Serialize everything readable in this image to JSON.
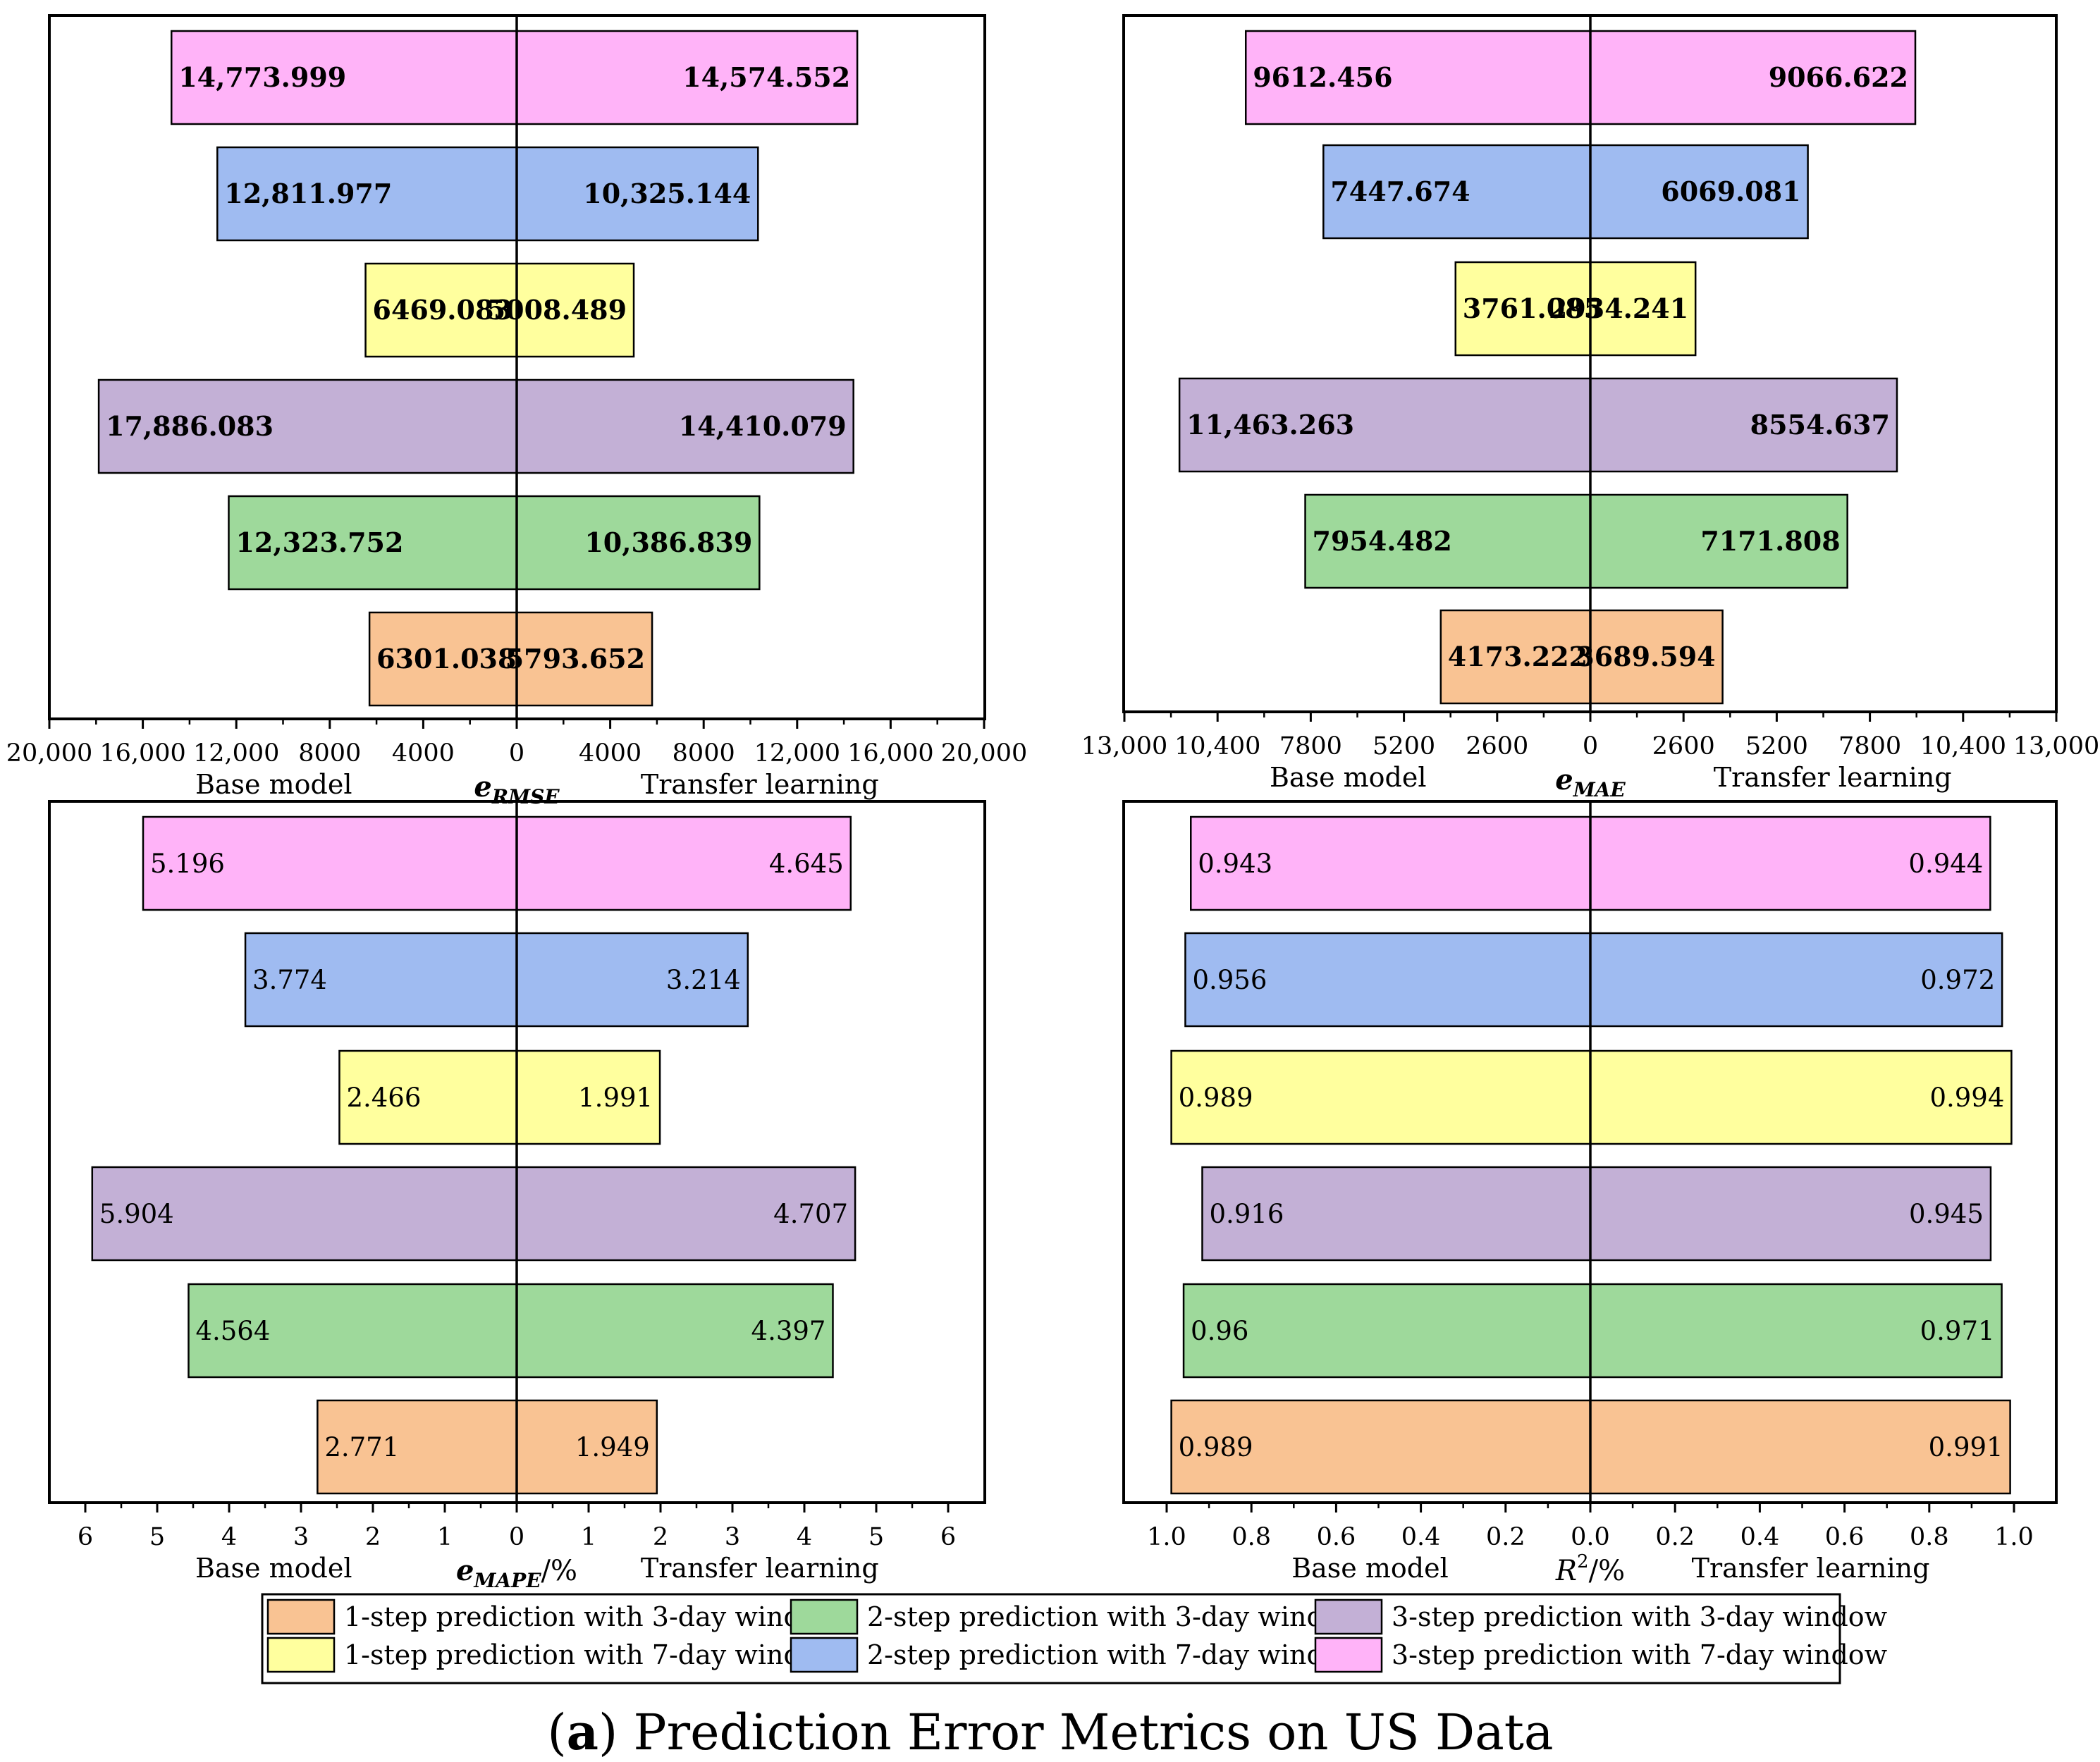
{
  "figure": {
    "caption_panel": "(a)",
    "caption_text": " Prediction Error Metrics on US Data"
  },
  "side_labels": {
    "left": "Base model",
    "right": "Transfer learning"
  },
  "legend": {
    "items": [
      {
        "label": "1-step prediction with 3-day window",
        "color": "#f9c393"
      },
      {
        "label": "2-step prediction with 3-day window",
        "color": "#9ed99b"
      },
      {
        "label": "3-step prediction with 3-day window",
        "color": "#c3b0d6"
      },
      {
        "label": "1-step prediction with 7-day window",
        "color": "#ffff9e"
      },
      {
        "label": "2-step prediction with 7-day window",
        "color": "#9fbbf1"
      },
      {
        "label": "3-step prediction with 7-day window",
        "color": "#ffb3f8"
      }
    ]
  },
  "chart_data": [
    {
      "type": "bar",
      "orientation": "horizontal-butterfly",
      "xlabel_main": "e",
      "xlabel_sub": "RMSE",
      "xlabel_suffix": "",
      "xlim": [
        -20000,
        20000
      ],
      "ticks": [
        -20000,
        -16000,
        -12000,
        -8000,
        -4000,
        0,
        4000,
        8000,
        12000,
        16000,
        20000
      ],
      "tick_labels": [
        "20,000",
        "16,000",
        "12,000",
        "8000",
        "4000",
        "0",
        "4000",
        "8000",
        "12,000",
        "16,000",
        "20,000"
      ],
      "bold_values": true,
      "categories": [
        "3-step prediction with 7-day window",
        "2-step prediction with 7-day window",
        "1-step prediction with 7-day window",
        "3-step prediction with 3-day window",
        "2-step prediction with 3-day window",
        "1-step prediction with 3-day window"
      ],
      "colors": [
        "#ffb3f8",
        "#9fbbf1",
        "#ffff9e",
        "#c3b0d6",
        "#9ed99b",
        "#f9c393"
      ],
      "series": [
        {
          "name": "Base model",
          "values": [
            14773.999,
            12811.977,
            6469.083,
            17886.083,
            12323.752,
            6301.038
          ],
          "labels": [
            "14,773.999",
            "12,811.977",
            "6469.083",
            "17,886.083",
            "12,323.752",
            "6301.038"
          ]
        },
        {
          "name": "Transfer learning",
          "values": [
            14574.552,
            10325.144,
            5008.489,
            14410.079,
            10386.839,
            5793.652
          ],
          "labels": [
            "14,574.552",
            "10,325.144",
            "5008.489",
            "14,410.079",
            "10,386.839",
            "5793.652"
          ]
        }
      ]
    },
    {
      "type": "bar",
      "orientation": "horizontal-butterfly",
      "xlabel_main": "e",
      "xlabel_sub": "MAE",
      "xlabel_suffix": "",
      "xlim": [
        -13000,
        13000
      ],
      "ticks": [
        -13000,
        -10400,
        -7800,
        -5200,
        -2600,
        0,
        2600,
        5200,
        7800,
        10400,
        13000
      ],
      "tick_labels": [
        "13,000",
        "10,400",
        "7800",
        "5200",
        "2600",
        "0",
        "2600",
        "5200",
        "7800",
        "10,400",
        "13,000"
      ],
      "bold_values": true,
      "categories": [
        "3-step prediction with 7-day window",
        "2-step prediction with 7-day window",
        "1-step prediction with 7-day window",
        "3-step prediction with 3-day window",
        "2-step prediction with 3-day window",
        "1-step prediction with 3-day window"
      ],
      "colors": [
        "#ffb3f8",
        "#9fbbf1",
        "#ffff9e",
        "#c3b0d6",
        "#9ed99b",
        "#f9c393"
      ],
      "series": [
        {
          "name": "Base model",
          "values": [
            9612.456,
            7447.674,
            3761.085,
            11463.263,
            7954.482,
            4173.222
          ],
          "labels": [
            "9612.456",
            "7447.674",
            "3761.085",
            "11,463.263",
            "7954.482",
            "4173.222"
          ]
        },
        {
          "name": "Transfer learning",
          "values": [
            9066.622,
            6069.081,
            2934.241,
            8554.637,
            7171.808,
            3689.594
          ],
          "labels": [
            "9066.622",
            "6069.081",
            "2934.241",
            "8554.637",
            "7171.808",
            "3689.594"
          ]
        }
      ]
    },
    {
      "type": "bar",
      "orientation": "horizontal-butterfly",
      "xlabel_main": "e",
      "xlabel_sub": "MAPE",
      "xlabel_suffix": "/%",
      "xlim": [
        -6.5,
        6.5
      ],
      "ticks": [
        -6,
        -5,
        -4,
        -3,
        -2,
        -1,
        0,
        1,
        2,
        3,
        4,
        5,
        6
      ],
      "tick_labels": [
        "6",
        "5",
        "4",
        "3",
        "2",
        "1",
        "0",
        "1",
        "2",
        "3",
        "4",
        "5",
        "6"
      ],
      "bold_values": false,
      "categories": [
        "3-step prediction with 7-day window",
        "2-step prediction with 7-day window",
        "1-step prediction with 7-day window",
        "3-step prediction with 3-day window",
        "2-step prediction with 3-day window",
        "1-step prediction with 3-day window"
      ],
      "colors": [
        "#ffb3f8",
        "#9fbbf1",
        "#ffff9e",
        "#c3b0d6",
        "#9ed99b",
        "#f9c393"
      ],
      "series": [
        {
          "name": "Base model",
          "values": [
            5.196,
            3.774,
            2.466,
            5.904,
            4.564,
            2.771
          ],
          "labels": [
            "5.196",
            "3.774",
            "2.466",
            "5.904",
            "4.564",
            "2.771"
          ]
        },
        {
          "name": "Transfer learning",
          "values": [
            4.645,
            3.214,
            1.991,
            4.707,
            4.397,
            1.949
          ],
          "labels": [
            "4.645",
            "3.214",
            "1.991",
            "4.707",
            "4.397",
            "1.949"
          ]
        }
      ]
    },
    {
      "type": "bar",
      "orientation": "horizontal-butterfly",
      "xlabel_main": "R",
      "xlabel_sup": "2",
      "xlabel_suffix": "/%",
      "xlim": [
        -1.0,
        1.0
      ],
      "ticks": [
        -1.0,
        -0.8,
        -0.6,
        -0.4,
        -0.2,
        0.0,
        0.2,
        0.4,
        0.6,
        0.8,
        1.0
      ],
      "tick_labels": [
        "1.0",
        "0.8",
        "0.6",
        "0.4",
        "0.2",
        "0.0",
        "0.2",
        "0.4",
        "0.6",
        "0.8",
        "1.0"
      ],
      "bold_values": false,
      "categories": [
        "3-step prediction with 7-day window",
        "2-step prediction with 7-day window",
        "1-step prediction with 7-day window",
        "3-step prediction with 3-day window",
        "2-step prediction with 3-day window",
        "1-step prediction with 3-day window"
      ],
      "colors": [
        "#ffb3f8",
        "#9fbbf1",
        "#ffff9e",
        "#c3b0d6",
        "#9ed99b",
        "#f9c393"
      ],
      "series": [
        {
          "name": "Base model",
          "values": [
            0.943,
            0.956,
            0.989,
            0.916,
            0.96,
            0.989
          ],
          "labels": [
            "0.943",
            "0.956",
            "0.989",
            "0.916",
            "0.96",
            "0.989"
          ]
        },
        {
          "name": "Transfer learning",
          "values": [
            0.944,
            0.972,
            0.994,
            0.945,
            0.971,
            0.991
          ],
          "labels": [
            "0.944",
            "0.972",
            "0.994",
            "0.945",
            "0.971",
            "0.991"
          ]
        }
      ]
    }
  ]
}
